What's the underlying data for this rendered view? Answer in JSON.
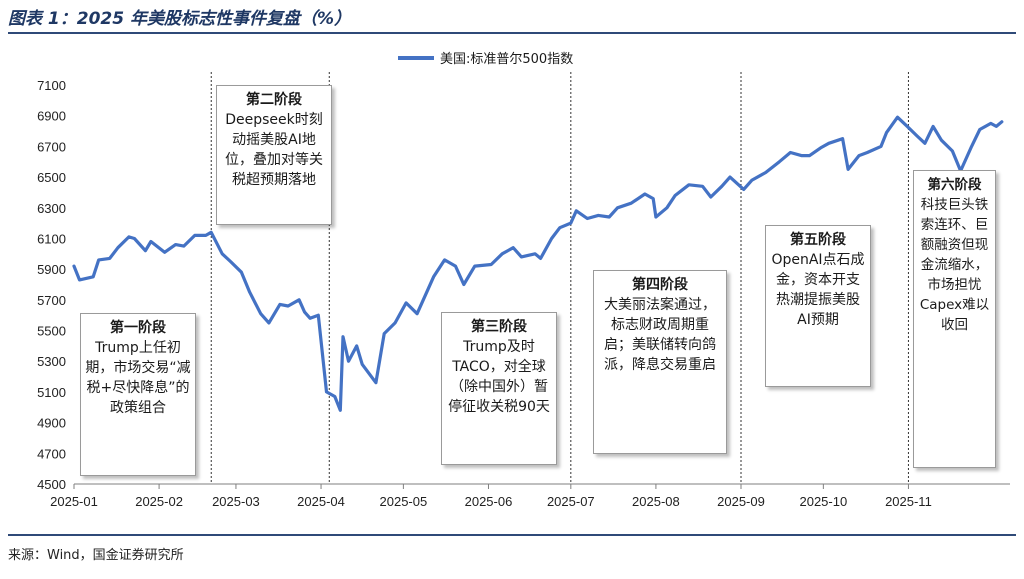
{
  "page": {
    "title": "图表 1：2025 年美股标志性事件复盘（%）",
    "source": "来源：Wind，国金证券研究所"
  },
  "colors": {
    "line": "#4472c4",
    "rule": "#2f4a78"
  },
  "chart_data": {
    "type": "line",
    "legend_position": "top-center",
    "series": [
      {
        "name": "美国:标准普尔500指数",
        "points": [
          [
            "2025-01-01",
            5920
          ],
          [
            "2025-01-03",
            5830
          ],
          [
            "2025-01-08",
            5850
          ],
          [
            "2025-01-10",
            5960
          ],
          [
            "2025-01-14",
            5970
          ],
          [
            "2025-01-17",
            6040
          ],
          [
            "2025-01-21",
            6110
          ],
          [
            "2025-01-23",
            6100
          ],
          [
            "2025-01-27",
            6020
          ],
          [
            "2025-01-29",
            6080
          ],
          [
            "2025-02-03",
            6010
          ],
          [
            "2025-02-07",
            6060
          ],
          [
            "2025-02-10",
            6050
          ],
          [
            "2025-02-14",
            6120
          ],
          [
            "2025-02-18",
            6120
          ],
          [
            "2025-02-20",
            6140
          ],
          [
            "2025-02-24",
            6000
          ],
          [
            "2025-02-27",
            5950
          ],
          [
            "2025-03-03",
            5880
          ],
          [
            "2025-03-06",
            5750
          ],
          [
            "2025-03-10",
            5610
          ],
          [
            "2025-03-13",
            5550
          ],
          [
            "2025-03-17",
            5670
          ],
          [
            "2025-03-20",
            5660
          ],
          [
            "2025-03-24",
            5700
          ],
          [
            "2025-03-26",
            5620
          ],
          [
            "2025-03-28",
            5580
          ],
          [
            "2025-03-31",
            5600
          ],
          [
            "2025-04-03",
            5100
          ],
          [
            "2025-04-06",
            5070
          ],
          [
            "2025-04-08",
            4980
          ],
          [
            "2025-04-09",
            5460
          ],
          [
            "2025-04-11",
            5300
          ],
          [
            "2025-04-14",
            5400
          ],
          [
            "2025-04-16",
            5280
          ],
          [
            "2025-04-21",
            5160
          ],
          [
            "2025-04-24",
            5480
          ],
          [
            "2025-04-28",
            5550
          ],
          [
            "2025-05-02",
            5680
          ],
          [
            "2025-05-06",
            5610
          ],
          [
            "2025-05-12",
            5850
          ],
          [
            "2025-05-16",
            5960
          ],
          [
            "2025-05-20",
            5920
          ],
          [
            "2025-05-23",
            5800
          ],
          [
            "2025-05-27",
            5920
          ],
          [
            "2025-06-02",
            5930
          ],
          [
            "2025-06-06",
            6000
          ],
          [
            "2025-06-10",
            6040
          ],
          [
            "2025-06-13",
            5980
          ],
          [
            "2025-06-18",
            6000
          ],
          [
            "2025-06-20",
            5970
          ],
          [
            "2025-06-24",
            6100
          ],
          [
            "2025-06-27",
            6170
          ],
          [
            "2025-07-01",
            6200
          ],
          [
            "2025-07-03",
            6280
          ],
          [
            "2025-07-07",
            6230
          ],
          [
            "2025-07-11",
            6250
          ],
          [
            "2025-07-15",
            6240
          ],
          [
            "2025-07-18",
            6300
          ],
          [
            "2025-07-23",
            6330
          ],
          [
            "2025-07-28",
            6390
          ],
          [
            "2025-07-31",
            6360
          ],
          [
            "2025-08-01",
            6240
          ],
          [
            "2025-08-05",
            6300
          ],
          [
            "2025-08-08",
            6380
          ],
          [
            "2025-08-13",
            6450
          ],
          [
            "2025-08-18",
            6440
          ],
          [
            "2025-08-21",
            6370
          ],
          [
            "2025-08-25",
            6440
          ],
          [
            "2025-08-28",
            6500
          ],
          [
            "2025-09-02",
            6420
          ],
          [
            "2025-09-05",
            6480
          ],
          [
            "2025-09-10",
            6530
          ],
          [
            "2025-09-15",
            6600
          ],
          [
            "2025-09-19",
            6660
          ],
          [
            "2025-09-23",
            6640
          ],
          [
            "2025-09-26",
            6640
          ],
          [
            "2025-09-30",
            6690
          ],
          [
            "2025-10-03",
            6720
          ],
          [
            "2025-10-08",
            6750
          ],
          [
            "2025-10-10",
            6550
          ],
          [
            "2025-10-14",
            6640
          ],
          [
            "2025-10-17",
            6660
          ],
          [
            "2025-10-22",
            6700
          ],
          [
            "2025-10-24",
            6790
          ],
          [
            "2025-10-28",
            6890
          ],
          [
            "2025-10-31",
            6840
          ],
          [
            "2025-11-04",
            6770
          ],
          [
            "2025-11-07",
            6720
          ],
          [
            "2025-11-10",
            6830
          ],
          [
            "2025-11-13",
            6740
          ],
          [
            "2025-11-17",
            6670
          ],
          [
            "2025-11-20",
            6540
          ],
          [
            "2025-11-24",
            6700
          ],
          [
            "2025-11-27",
            6810
          ],
          [
            "2025-12-01",
            6850
          ],
          [
            "2025-12-03",
            6830
          ],
          [
            "2025-12-05",
            6860
          ]
        ]
      }
    ],
    "y_axis": {
      "min": 4500,
      "max": 7100,
      "step": 200,
      "ticks": [
        "4500",
        "4700",
        "4900",
        "5100",
        "5300",
        "5500",
        "5700",
        "5900",
        "6100",
        "6300",
        "6500",
        "6700",
        "6900",
        "7100"
      ]
    },
    "x_axis": {
      "range": [
        "2025-01-01",
        "2025-12-08"
      ],
      "ticks": [
        {
          "date": "2025-01-01",
          "label": "2025-01"
        },
        {
          "date": "2025-02-01",
          "label": "2025-02"
        },
        {
          "date": "2025-03-01",
          "label": "2025-03"
        },
        {
          "date": "2025-04-01",
          "label": "2025-04"
        },
        {
          "date": "2025-05-01",
          "label": "2025-05"
        },
        {
          "date": "2025-06-01",
          "label": "2025-06"
        },
        {
          "date": "2025-07-01",
          "label": "2025-07"
        },
        {
          "date": "2025-08-01",
          "label": "2025-08"
        },
        {
          "date": "2025-09-01",
          "label": "2025-09"
        },
        {
          "date": "2025-10-01",
          "label": "2025-10"
        },
        {
          "date": "2025-11-01",
          "label": "2025-11"
        }
      ]
    },
    "stage_dividers": [
      "2025-02-20",
      "2025-04-04",
      "2025-07-01",
      "2025-09-01",
      "2025-11-01"
    ],
    "annotations": [
      {
        "title": "第一阶段",
        "text": "Trump上任初期，市场交易“减税+尽快降息”的政策组合"
      },
      {
        "title": "第二阶段",
        "text": "Deepseek时刻动摇美股AI地位，叠加对等关税超预期落地"
      },
      {
        "title": "第三阶段",
        "text": "Trump及时TACO，对全球（除中国外）暂停征收关税90天"
      },
      {
        "title": "第四阶段",
        "text": "大美丽法案通过，标志财政周期重启；美联储转向鸽派，降息交易重启"
      },
      {
        "title": "第五阶段",
        "text": "OpenAI点石成金，资本开支热潮提振美股AI预期"
      },
      {
        "title": "第六阶段",
        "text": "科技巨头铁索连环、巨额融资但现金流缩水，市场担忧Capex难以收回"
      }
    ]
  }
}
